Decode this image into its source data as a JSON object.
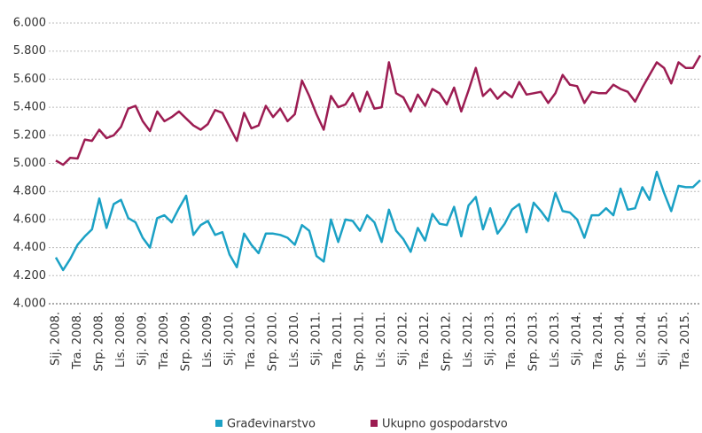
{
  "chart_data": {
    "type": "line",
    "categories": [
      "Sij. 2008.",
      null,
      null,
      "Tra. 2008.",
      null,
      null,
      "Srp. 2008.",
      null,
      null,
      "Lis. 2008.",
      null,
      null,
      "Sij. 2009.",
      null,
      null,
      "Tra. 2009.",
      null,
      null,
      "Srp. 2009.",
      null,
      null,
      "Lis. 2009.",
      null,
      null,
      "Sij. 2010.",
      null,
      null,
      "Tra. 2010.",
      null,
      null,
      "Srp. 2010.",
      null,
      null,
      "Lis. 2010.",
      null,
      null,
      "Sij. 2011.",
      null,
      null,
      "Tra. 2011.",
      null,
      null,
      "Srp. 2011.",
      null,
      null,
      "Lis. 2011.",
      null,
      null,
      "Sij. 2012.",
      null,
      null,
      "Tra. 2012.",
      null,
      null,
      "Srp. 2012.",
      null,
      null,
      "Lis. 2012.",
      null,
      null,
      "Sij. 2013.",
      null,
      null,
      "Tra. 2013.",
      null,
      null,
      "Srp. 2013.",
      null,
      null,
      "Lis. 2013.",
      null,
      null,
      "Sij. 2014.",
      null,
      null,
      "Tra. 2014.",
      null,
      null,
      "Srp. 2014.",
      null,
      null,
      "Lis. 2014.",
      null,
      null,
      "Sij. 2015.",
      null,
      null,
      "Tra. 2015.",
      null,
      null
    ],
    "series": [
      {
        "name": "Građevinarstvo",
        "color": "#1ba1c5",
        "values": [
          4330,
          4240,
          4320,
          4420,
          4480,
          4530,
          4750,
          4540,
          4710,
          4740,
          4610,
          4580,
          4470,
          4400,
          4610,
          4630,
          4580,
          4680,
          4770,
          4490,
          4560,
          4590,
          4490,
          4510,
          4350,
          4260,
          4500,
          4420,
          4360,
          4500,
          4500,
          4490,
          4470,
          4420,
          4560,
          4520,
          4340,
          4300,
          4600,
          4440,
          4600,
          4590,
          4520,
          4630,
          4580,
          4440,
          4670,
          4520,
          4460,
          4370,
          4540,
          4450,
          4640,
          4570,
          4560,
          4690,
          4480,
          4700,
          4760,
          4530,
          4680,
          4500,
          4570,
          4670,
          4710,
          4510,
          4720,
          4660,
          4590,
          4790,
          4660,
          4650,
          4600,
          4470,
          4630,
          4630,
          4680,
          4630,
          4820,
          4670,
          4680,
          4830,
          4740,
          4940,
          4790,
          4660,
          4840,
          4830,
          4830,
          4880
        ]
      },
      {
        "name": "Ukupno gospodarstvo",
        "color": "#9c1c52",
        "values": [
          5020,
          4990,
          5040,
          5035,
          5170,
          5160,
          5240,
          5180,
          5200,
          5260,
          5390,
          5410,
          5300,
          5230,
          5370,
          5300,
          5330,
          5370,
          5320,
          5270,
          5240,
          5280,
          5380,
          5360,
          5260,
          5160,
          5360,
          5250,
          5270,
          5410,
          5330,
          5390,
          5300,
          5350,
          5590,
          5480,
          5350,
          5240,
          5480,
          5400,
          5420,
          5500,
          5370,
          5510,
          5390,
          5400,
          5720,
          5500,
          5470,
          5370,
          5490,
          5410,
          5530,
          5500,
          5420,
          5540,
          5370,
          5520,
          5680,
          5480,
          5530,
          5460,
          5510,
          5470,
          5580,
          5490,
          5500,
          5510,
          5430,
          5500,
          5630,
          5560,
          5550,
          5430,
          5510,
          5500,
          5500,
          5560,
          5530,
          5510,
          5440,
          5540,
          5630,
          5720,
          5680,
          5570,
          5720,
          5680,
          5680,
          5770
        ]
      }
    ],
    "ylim": [
      4000,
      6000
    ],
    "yticks": [
      {
        "value": 4000,
        "label": "4.000"
      },
      {
        "value": 4200,
        "label": "4.200"
      },
      {
        "value": 4400,
        "label": "4.400"
      },
      {
        "value": 4600,
        "label": "4.600"
      },
      {
        "value": 4800,
        "label": "4.800"
      },
      {
        "value": 5000,
        "label": "5.000"
      },
      {
        "value": 5200,
        "label": "5.200"
      },
      {
        "value": 5400,
        "label": "5.400"
      },
      {
        "value": 5600,
        "label": "5.600"
      },
      {
        "value": 5800,
        "label": "5.800"
      },
      {
        "value": 6000,
        "label": "6.000"
      }
    ],
    "grid": true
  }
}
